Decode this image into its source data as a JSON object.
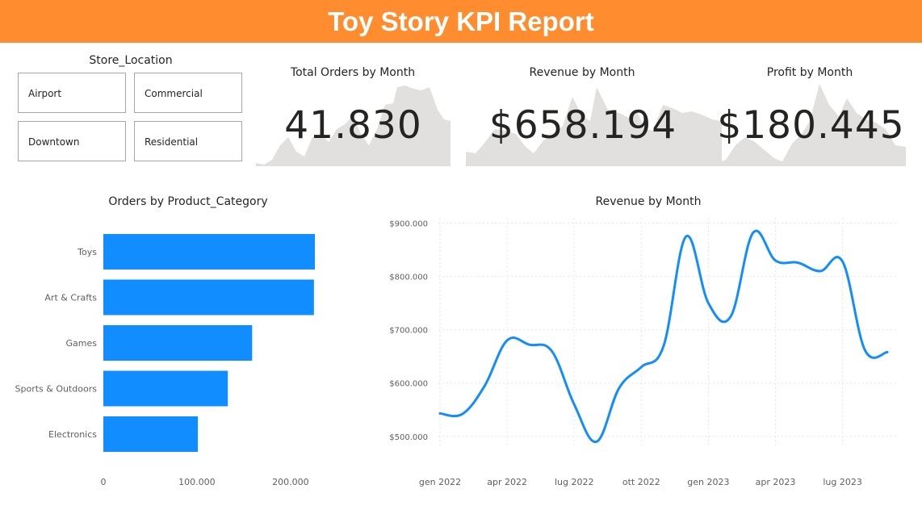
{
  "header": {
    "title": "Toy Story KPI Report"
  },
  "slicer": {
    "title": "Store_Location",
    "options": [
      "Airport",
      "Commercial",
      "Downtown",
      "Residential"
    ]
  },
  "kpis": [
    {
      "title": "Total Orders by Month",
      "value": "41.830",
      "color": "#e1e0de"
    },
    {
      "title": "Revenue by Month",
      "value": "$658.194",
      "color": "#e1e0de"
    },
    {
      "title": "Profit by Month",
      "value": "$180.445",
      "color": "#e1e0de"
    }
  ],
  "chart_data": [
    {
      "type": "bar",
      "orientation": "horizontal",
      "title": "Orders by Product_Category",
      "categories": [
        "Toys",
        "Art & Crafts",
        "Games",
        "Sports & Outdoors",
        "Electronics"
      ],
      "values": [
        226000,
        225000,
        159000,
        133000,
        101000
      ],
      "xlim": [
        0,
        240000
      ],
      "xticks": [
        0,
        100000,
        200000
      ],
      "xtick_labels": [
        "0",
        "100.000",
        "200.000"
      ],
      "color": "#118dff"
    },
    {
      "type": "line",
      "title": "Revenue by Month",
      "x": [
        "gen 2022",
        "feb 2022",
        "mar 2022",
        "apr 2022",
        "mag 2022",
        "giu 2022",
        "lug 2022",
        "ago 2022",
        "set 2022",
        "ott 2022",
        "nov 2022",
        "dic 2022",
        "gen 2023",
        "feb 2023",
        "mar 2023",
        "apr 2023",
        "mag 2023",
        "giu 2023",
        "lug 2023",
        "ago 2023",
        "set 2023"
      ],
      "values": [
        543000,
        542000,
        595000,
        680000,
        672000,
        660000,
        560000,
        490000,
        590000,
        630000,
        670000,
        875000,
        750000,
        725000,
        882000,
        830000,
        826000,
        810000,
        828000,
        662000,
        658000
      ],
      "ylim": [
        480000,
        910000
      ],
      "yticks": [
        500000,
        600000,
        700000,
        800000,
        900000
      ],
      "ytick_labels": [
        "$500.000",
        "$600.000",
        "$700.000",
        "$800.000",
        "$900.000"
      ],
      "xtick_labels": [
        "gen 2022",
        "apr 2022",
        "lug 2022",
        "ott 2022",
        "gen 2023",
        "apr 2023",
        "lug 2023"
      ],
      "xtick_index": [
        0,
        3,
        6,
        9,
        12,
        15,
        18
      ],
      "color": "#118dff",
      "grid": true
    }
  ]
}
